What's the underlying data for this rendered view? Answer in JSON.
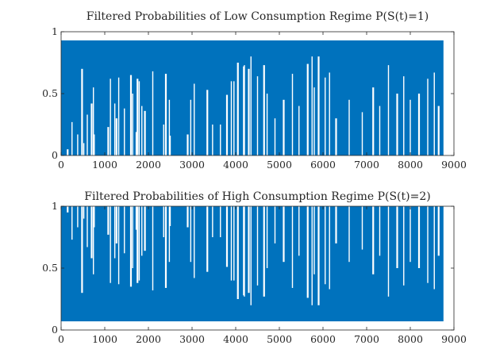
{
  "chart_data": [
    {
      "type": "line",
      "title": "Filtered Probabilities of Low Consumption Regime P(S(t)=1)",
      "xlabel": "",
      "ylabel": "",
      "xlim": [
        0,
        9000
      ],
      "ylim": [
        0,
        1
      ],
      "x_range": [
        1,
        8760
      ],
      "xticks": [
        "0",
        "1000",
        "2000",
        "3000",
        "4000",
        "5000",
        "6000",
        "7000",
        "8000",
        "9000"
      ],
      "yticks": [
        "0",
        "0.5",
        "1"
      ],
      "color": "#0072BD",
      "envelope": {
        "min": 0.0,
        "max": 0.93
      },
      "dips_note": "local minimum of the series in periods where it stays above the floor",
      "local_minima": [
        [
          150,
          0.05
        ],
        [
          250,
          0.27
        ],
        [
          380,
          0.17
        ],
        [
          480,
          0.7
        ],
        [
          520,
          0.1
        ],
        [
          600,
          0.33
        ],
        [
          700,
          0.42
        ],
        [
          740,
          0.55
        ],
        [
          760,
          0.17
        ],
        [
          1080,
          0.23
        ],
        [
          1130,
          0.62
        ],
        [
          1230,
          0.42
        ],
        [
          1270,
          0.3
        ],
        [
          1320,
          0.63
        ],
        [
          1450,
          0.38
        ],
        [
          1600,
          0.65
        ],
        [
          1640,
          0.5
        ],
        [
          1720,
          0.19
        ],
        [
          1750,
          0.62
        ],
        [
          1790,
          0.6
        ],
        [
          1850,
          0.4
        ],
        [
          1920,
          0.36
        ],
        [
          2100,
          0.68
        ],
        [
          2350,
          0.25
        ],
        [
          2400,
          0.66
        ],
        [
          2480,
          0.45
        ],
        [
          2500,
          0.16
        ],
        [
          2900,
          0.17
        ],
        [
          2970,
          0.45
        ],
        [
          3050,
          0.58
        ],
        [
          3350,
          0.53
        ],
        [
          3470,
          0.25
        ],
        [
          3650,
          0.25
        ],
        [
          3800,
          0.49
        ],
        [
          3900,
          0.6
        ],
        [
          3960,
          0.6
        ],
        [
          4050,
          0.75
        ],
        [
          4180,
          0.72
        ],
        [
          4200,
          0.73
        ],
        [
          4300,
          0.7
        ],
        [
          4350,
          0.8
        ],
        [
          4500,
          0.64
        ],
        [
          4650,
          0.73
        ],
        [
          4720,
          0.5
        ],
        [
          4900,
          0.3
        ],
        [
          5100,
          0.45
        ],
        [
          5300,
          0.66
        ],
        [
          5450,
          0.4
        ],
        [
          5650,
          0.74
        ],
        [
          5750,
          0.8
        ],
        [
          5800,
          0.55
        ],
        [
          5900,
          0.8
        ],
        [
          6050,
          0.63
        ],
        [
          6150,
          0.67
        ],
        [
          6300,
          0.3
        ],
        [
          6600,
          0.45
        ],
        [
          6900,
          0.35
        ],
        [
          7150,
          0.55
        ],
        [
          7300,
          0.4
        ],
        [
          7500,
          0.73
        ],
        [
          7700,
          0.5
        ],
        [
          7850,
          0.64
        ],
        [
          8000,
          0.45
        ],
        [
          8200,
          0.5
        ],
        [
          8400,
          0.62
        ],
        [
          8550,
          0.67
        ],
        [
          8650,
          0.4
        ]
      ]
    },
    {
      "type": "line",
      "title": "Filtered Probabilities of High Consumption Regime P(S(t)=2)",
      "xlabel": "",
      "ylabel": "",
      "xlim": [
        0,
        9000
      ],
      "ylim": [
        0,
        1
      ],
      "x_range": [
        1,
        8760
      ],
      "xticks": [
        "0",
        "1000",
        "2000",
        "3000",
        "4000",
        "5000",
        "6000",
        "7000",
        "8000",
        "9000"
      ],
      "yticks": [
        "0",
        "0.5",
        "1"
      ],
      "color": "#0072BD",
      "envelope": {
        "min": 0.07,
        "max": 1.0
      },
      "relation": "1 - P(S(t)=1)"
    }
  ]
}
